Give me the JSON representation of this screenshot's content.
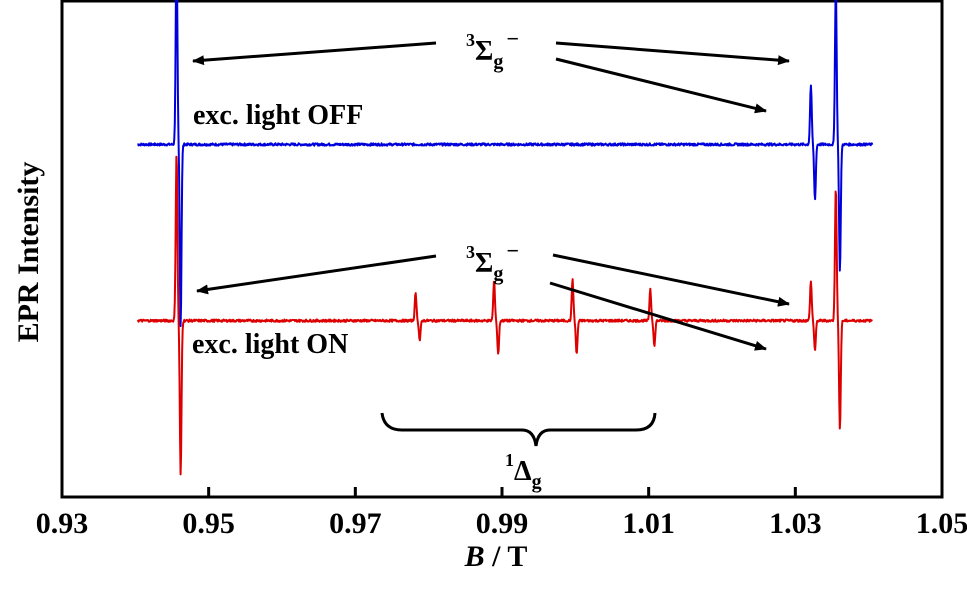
{
  "chart_data": {
    "type": "line",
    "title": "",
    "xlabel": {
      "italic": "B",
      "rest": " / T"
    },
    "ylabel": "EPR Intensity",
    "xlim": [
      0.93,
      1.05
    ],
    "xticks": [
      0.93,
      0.95,
      0.97,
      0.99,
      1.01,
      1.03,
      1.05
    ],
    "xtick_labels": [
      "0.93",
      "0.95",
      "0.97",
      "0.99",
      "1.01",
      "1.03",
      "1.05"
    ],
    "yticks": [],
    "colors": {
      "off": "#0000dd",
      "on": "#dd0000",
      "axis": "#000000",
      "annot": "#000000"
    },
    "series": [
      {
        "name": "exc. light OFF",
        "baseline": 0.73,
        "x_range": [
          0.9403,
          1.0405
        ],
        "peaks": [
          {
            "x": 0.9459,
            "up": 1.0,
            "down": -0.92
          },
          {
            "x": 1.0324,
            "up": 0.3,
            "down": -0.28
          },
          {
            "x": 1.0358,
            "up": 0.8,
            "down": -0.64
          }
        ]
      },
      {
        "name": "exc. light ON",
        "baseline": -0.16,
        "x_range": [
          0.9403,
          1.0405
        ],
        "peaks": [
          {
            "x": 0.9459,
            "up": 0.85,
            "down": -0.78
          },
          {
            "x": 0.9785,
            "up": 0.14,
            "down": -0.1
          },
          {
            "x": 0.9892,
            "up": 0.2,
            "down": -0.17
          },
          {
            "x": 0.9999,
            "up": 0.21,
            "down": -0.17
          },
          {
            "x": 1.0105,
            "up": 0.16,
            "down": -0.13
          },
          {
            "x": 1.0324,
            "up": 0.2,
            "down": -0.15
          },
          {
            "x": 1.0358,
            "up": 0.68,
            "down": -0.55
          }
        ]
      }
    ],
    "annotations": [
      {
        "id": "sigma-off",
        "sup": "3",
        "main": "Σ",
        "sub": "g",
        "post": "−"
      },
      {
        "id": "sigma-on",
        "sup": "3",
        "main": "Σ",
        "sub": "g",
        "post": "−"
      },
      {
        "id": "delta-on",
        "sup": "1",
        "main": "Δ",
        "sub": "g",
        "post": ""
      }
    ],
    "condition_labels": [
      "exc. light OFF",
      "exc. light ON"
    ]
  }
}
